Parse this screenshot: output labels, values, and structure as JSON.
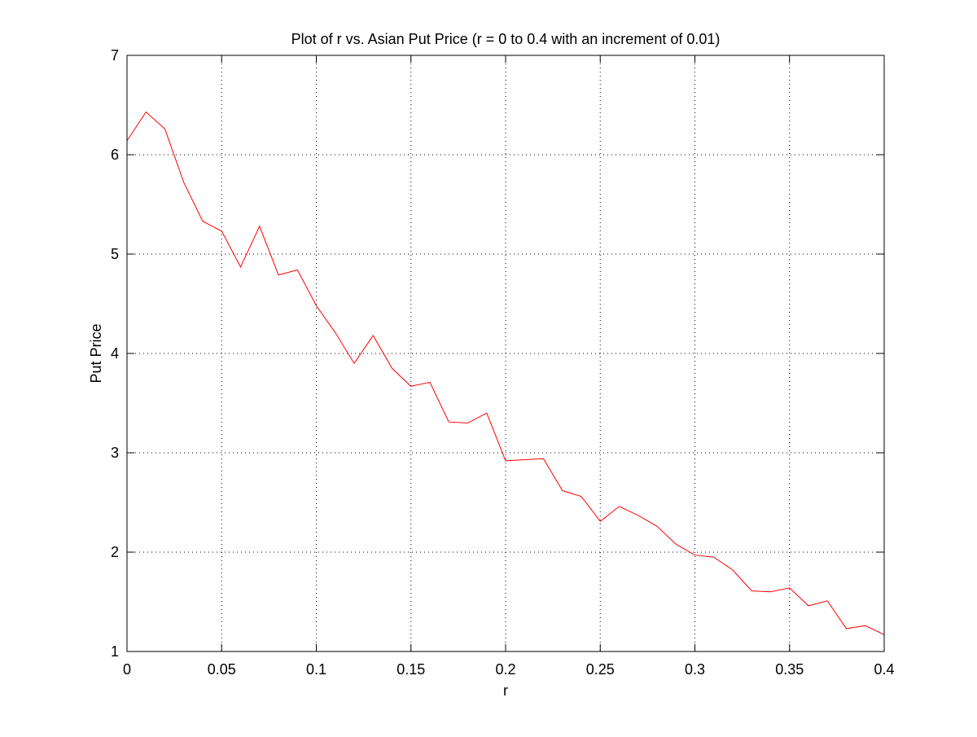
{
  "chart_data": {
    "type": "line",
    "title": "Plot of r vs. Asian Put Price (r = 0 to 0.4 with an increment of 0.01)",
    "xlabel": "r",
    "ylabel": "Put Price",
    "xlim": [
      0,
      0.4
    ],
    "ylim": [
      1,
      7
    ],
    "grid": true,
    "legend": "none",
    "xticks": [
      0,
      0.05,
      0.1,
      0.15,
      0.2,
      0.25,
      0.3,
      0.35,
      0.4
    ],
    "xtick_labels": [
      "0",
      "0.05",
      "0.1",
      "0.15",
      "0.2",
      "0.25",
      "0.3",
      "0.35",
      "0.4"
    ],
    "yticks": [
      1,
      2,
      3,
      4,
      5,
      6,
      7
    ],
    "ytick_labels": [
      "1",
      "2",
      "3",
      "4",
      "5",
      "6",
      "7"
    ],
    "line_color": "#ff0000",
    "series": [
      {
        "x": [
          0,
          0.01,
          0.02,
          0.03,
          0.04,
          0.05,
          0.06,
          0.07,
          0.08,
          0.09,
          0.1,
          0.11,
          0.12,
          0.13,
          0.14,
          0.15,
          0.16,
          0.17,
          0.18,
          0.19,
          0.2,
          0.21,
          0.22,
          0.23,
          0.24,
          0.25,
          0.26,
          0.27,
          0.28,
          0.29,
          0.3,
          0.31,
          0.32,
          0.33,
          0.34,
          0.35,
          0.36,
          0.37,
          0.38,
          0.39,
          0.4
        ],
        "values": [
          6.14,
          6.43,
          6.26,
          5.72,
          5.33,
          5.23,
          4.87,
          5.28,
          4.79,
          4.84,
          4.48,
          4.21,
          3.9,
          4.18,
          3.85,
          3.67,
          3.71,
          3.31,
          3.3,
          3.4,
          2.92,
          2.93,
          2.94,
          2.62,
          2.56,
          2.31,
          2.46,
          2.37,
          2.26,
          2.08,
          1.97,
          1.95,
          1.82,
          1.61,
          1.6,
          1.64,
          1.46,
          1.51,
          1.23,
          1.26,
          1.17
        ]
      }
    ]
  }
}
